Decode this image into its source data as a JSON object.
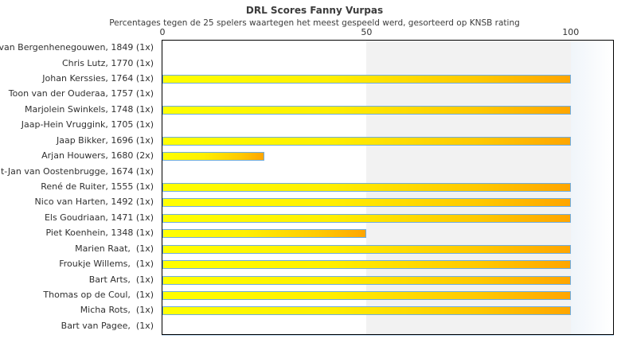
{
  "header": {
    "title": "DRL Scores Fanny Vurpas",
    "subtitle": "Percentages tegen de 25 spelers waartegen het meest gespeeld werd, gesorteerd op KNSB rating"
  },
  "chart_data": {
    "type": "bar",
    "orientation": "horizontal",
    "title": "DRL Scores Fanny Vurpas",
    "subtitle": "Percentages tegen de 25 spelers waartegen het meest gespeeld werd, gesorteerd op KNSB rating",
    "xlabel": "",
    "ylabel": "",
    "xlim": [
      0,
      110
    ],
    "xticks": [
      0,
      50,
      100
    ],
    "grid": false,
    "legend_position": "none",
    "shaded_band": {
      "from": 50,
      "to": 100,
      "color": "#f2f2f2"
    },
    "categories": [
      "van Bergenhenegouwen, 1849 (1x)",
      "Chris Lutz, 1770 (1x)",
      "Johan Kerssies, 1764 (1x)",
      "Toon van der Ouderaa, 1757 (1x)",
      "Marjolein Swinkels, 1748 (1x)",
      "Jaap-Hein Vruggink, 1705 (1x)",
      "Jaap Bikker, 1696 (1x)",
      "Arjan Houwers, 1680 (2x)",
      "t-Jan van Oostenbrugge, 1674 (1x)",
      "René de Ruiter, 1555 (1x)",
      "Nico van Harten, 1492 (1x)",
      "Els Goudriaan, 1471 (1x)",
      "Piet Koenhein, 1348 (1x)",
      "Marien Raat,  (1x)",
      "Froukje Willems,  (1x)",
      "Bart Arts,  (1x)",
      "Thomas op de Coul,  (1x)",
      "Micha Rots,  (1x)",
      "Bart van Pagee,  (1x)"
    ],
    "values": [
      0,
      0,
      100,
      0,
      100,
      0,
      100,
      25,
      0,
      100,
      100,
      100,
      50,
      100,
      100,
      100,
      100,
      100,
      0
    ],
    "colors": {
      "bar_gradient_start": "#ffff00",
      "bar_gradient_end": "#ffa500",
      "bar_border": "#6facdf",
      "shaded_band": "#f2f2f2",
      "plot_border": "#000000",
      "text": "#3c3c3c"
    }
  }
}
